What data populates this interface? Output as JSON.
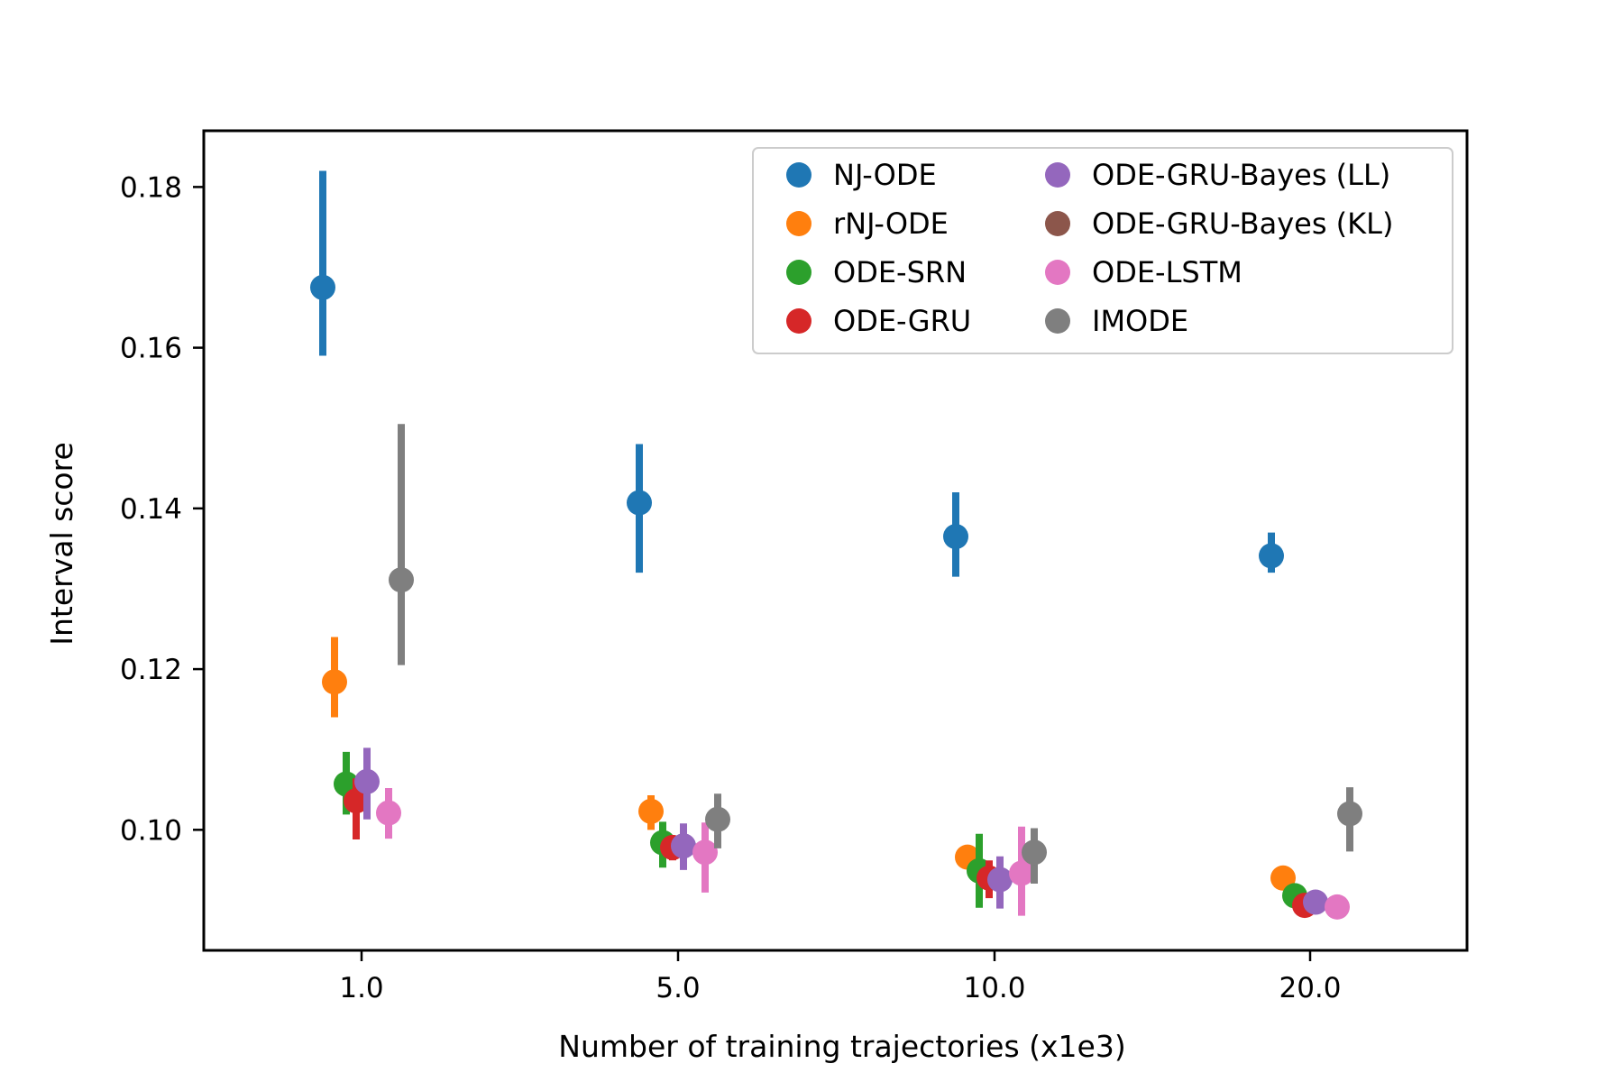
{
  "chart_data": {
    "type": "scatter",
    "title": "",
    "xlabel": "Number of training trajectories (x1e3)",
    "ylabel": "Interval score",
    "categories": [
      "1.0",
      "5.0",
      "10.0",
      "20.0"
    ],
    "ylim": [
      0.085,
      0.187
    ],
    "yticks": [
      "0.10",
      "0.12",
      "0.14",
      "0.16",
      "0.18"
    ],
    "grid": false,
    "legend_placement": "upper right",
    "error_bars": true,
    "series": [
      {
        "name": "NJ-ODE",
        "color": "#1f77b4",
        "values": [
          0.1675,
          0.1407,
          0.1365,
          0.1341
        ],
        "lower": [
          0.159,
          0.132,
          0.1315,
          0.132
        ],
        "upper": [
          0.182,
          0.148,
          0.142,
          0.137
        ]
      },
      {
        "name": "rNJ-ODE",
        "color": "#ff7f0e",
        "values": [
          0.1184,
          0.1023,
          0.0966,
          0.094
        ],
        "lower": [
          0.114,
          0.1,
          0.0966,
          0.094
        ],
        "upper": [
          0.124,
          0.1043,
          0.0966,
          0.094
        ]
      },
      {
        "name": "ODE-SRN",
        "color": "#2ca02c",
        "values": [
          0.1057,
          0.0984,
          0.0949,
          0.0918
        ],
        "lower": [
          0.1019,
          0.0953,
          0.0903,
          0.0918
        ],
        "upper": [
          0.1097,
          0.101,
          0.0995,
          0.0918
        ]
      },
      {
        "name": "ODE-GRU",
        "color": "#d62728",
        "values": [
          0.1036,
          0.0978,
          0.094,
          0.0906
        ],
        "lower": [
          0.0988,
          0.0962,
          0.0915,
          0.0906
        ],
        "upper": [
          0.1064,
          0.0992,
          0.0962,
          0.0906
        ]
      },
      {
        "name": "ODE-GRU-Bayes (LL)",
        "color": "#9467bd",
        "values": [
          0.106,
          0.098,
          0.0938,
          0.091
        ],
        "lower": [
          0.1013,
          0.095,
          0.0902,
          0.091
        ],
        "upper": [
          0.1102,
          0.1008,
          0.0967,
          0.091
        ]
      },
      {
        "name": "ODE-GRU-Bayes (KL)",
        "color": "#8c564b",
        "values": [],
        "lower": [],
        "upper": []
      },
      {
        "name": "ODE-LSTM",
        "color": "#e377c2",
        "values": [
          0.1021,
          0.0972,
          0.0946,
          0.0904
        ],
        "lower": [
          0.0989,
          0.0922,
          0.0893,
          0.0904
        ],
        "upper": [
          0.1052,
          0.1009,
          0.1004,
          0.0904
        ]
      },
      {
        "name": "IMODE",
        "color": "#7f7f7f",
        "values": [
          0.1311,
          0.1013,
          0.0972,
          0.102
        ],
        "lower": [
          0.1205,
          0.0977,
          0.0933,
          0.0973
        ],
        "upper": [
          0.1505,
          0.1045,
          0.1002,
          0.1053
        ]
      }
    ]
  }
}
